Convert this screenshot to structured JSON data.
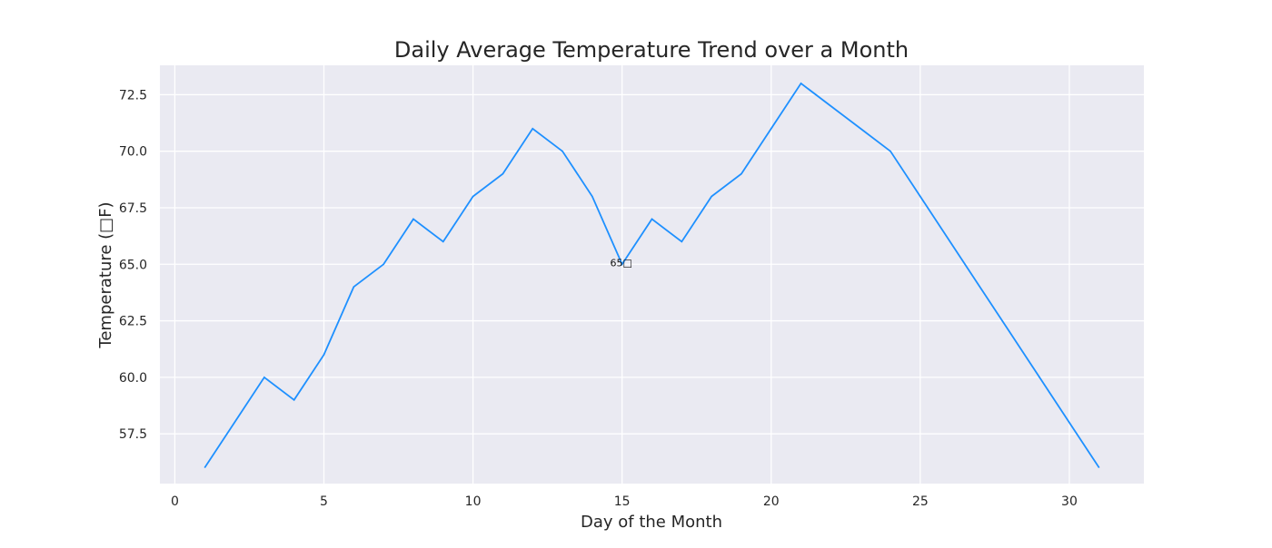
{
  "chart_data": {
    "type": "line",
    "title": "Daily Average Temperature Trend over a Month",
    "xlabel": "Day of the Month",
    "ylabel": "Temperature (□F)",
    "xlim": [
      -0.5,
      32.5
    ],
    "ylim": [
      55.3,
      73.8
    ],
    "xticks": [
      0,
      5,
      10,
      15,
      20,
      25,
      30
    ],
    "yticks": [
      57.5,
      60.0,
      62.5,
      65.0,
      67.5,
      70.0,
      72.5
    ],
    "ytick_labels": [
      "57.5",
      "60.0",
      "62.5",
      "65.0",
      "67.5",
      "70.0",
      "72.5"
    ],
    "grid": true,
    "background": "#eaeaf2",
    "series": [
      {
        "color": "#1e90ff",
        "x": [
          1,
          2,
          3,
          4,
          5,
          6,
          7,
          8,
          9,
          10,
          11,
          12,
          13,
          14,
          15,
          16,
          17,
          18,
          19,
          20,
          21,
          22,
          23,
          24,
          25,
          26,
          27,
          28,
          29,
          30,
          31
        ],
        "values": [
          56,
          58,
          60,
          59,
          61,
          64,
          65,
          67,
          66,
          68,
          69,
          71,
          70,
          68,
          65,
          67,
          66,
          68,
          69,
          71,
          73,
          72,
          71,
          70,
          68,
          66,
          64,
          62,
          60,
          58,
          56
        ]
      }
    ],
    "annotations": [
      {
        "x": 15,
        "y": 65,
        "text": "65□"
      }
    ]
  }
}
